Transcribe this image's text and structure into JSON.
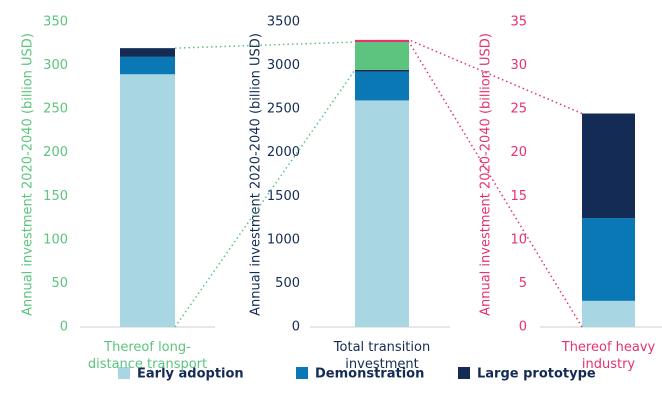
{
  "chart_data": [
    {
      "type": "stacked_bar",
      "y_label": "Annual investment 2020-2040 (billion USD)",
      "axis_color": "#5cc47e",
      "categories": [
        "Thereof long-distance transport"
      ],
      "series": [
        {
          "name": "Early adoption",
          "color": "#a9d6e3",
          "values": [
            290
          ]
        },
        {
          "name": "Demonstration",
          "color": "#0a78b4",
          "values": [
            20
          ]
        },
        {
          "name": "Large prototype",
          "color": "#142c55",
          "values": [
            10
          ]
        }
      ],
      "ylim": [
        0,
        350
      ],
      "yticks": [
        0,
        50,
        100,
        150,
        200,
        250,
        300,
        350
      ]
    },
    {
      "type": "stacked_bar",
      "y_label": "Annual investment 2020-2040 (billion USD)",
      "axis_color": "#142c55",
      "categories": [
        "Total transition investment"
      ],
      "series": [
        {
          "name": "Early adoption",
          "color": "#a9d6e3",
          "values": [
            2600
          ]
        },
        {
          "name": "Demonstration",
          "color": "#0a78b4",
          "values": [
            330
          ]
        },
        {
          "name": "Large prototype",
          "color": "#142c55",
          "values": [
            20
          ]
        },
        {
          "color": "#5cc47e",
          "values": [
            320
          ]
        },
        {
          "color": "#e6336b",
          "values": [
            25
          ]
        }
      ],
      "ylim": [
        0,
        3500
      ],
      "yticks": [
        0,
        500,
        1000,
        1500,
        2000,
        2500,
        3000,
        3500
      ]
    },
    {
      "type": "stacked_bar",
      "y_label": "Annual investment 2020-2040 (billion USD)",
      "axis_color": "#e6336b",
      "categories": [
        "Thereof heavy industry"
      ],
      "series": [
        {
          "name": "Early adoption",
          "color": "#a9d6e3",
          "values": [
            3
          ]
        },
        {
          "name": "Demonstration",
          "color": "#0a78b4",
          "values": [
            9.5
          ]
        },
        {
          "name": "Large prototype",
          "color": "#142c55",
          "values": [
            12
          ]
        }
      ],
      "ylim": [
        0,
        35
      ],
      "yticks": [
        0,
        5,
        10,
        15,
        20,
        25,
        30,
        35
      ]
    }
  ]
}
